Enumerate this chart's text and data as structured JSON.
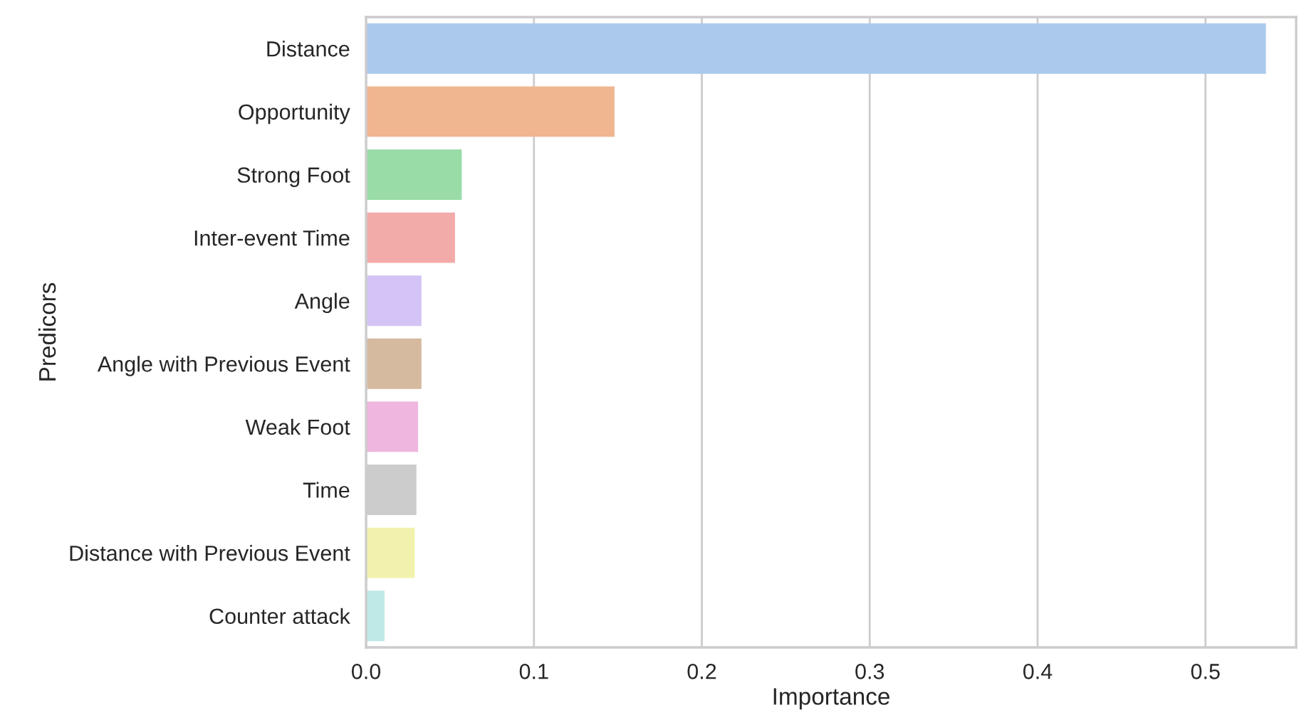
{
  "chart_data": {
    "type": "bar",
    "orientation": "horizontal",
    "xlabel": "Importance",
    "ylabel": "Predicors",
    "categories": [
      "Distance",
      "Opportunity",
      "Strong Foot",
      "Inter-event Time",
      "Angle",
      "Angle with Previous Event",
      "Weak Foot",
      "Time",
      "Distance with Previous Event",
      "Counter attack"
    ],
    "values": [
      0.536,
      0.148,
      0.057,
      0.053,
      0.033,
      0.033,
      0.031,
      0.03,
      0.029,
      0.011
    ],
    "colors": [
      "#abc9ec",
      "#f0b690",
      "#9adca8",
      "#f2aba9",
      "#d4c3f5",
      "#d5baa0",
      "#efb6df",
      "#cccccc",
      "#f2f2ae",
      "#bfe9e6"
    ],
    "xlim": [
      0,
      0.554
    ],
    "xticks": [
      {
        "value": 0,
        "label": "0.0"
      },
      0.1,
      0.2,
      0.3,
      0.4,
      0.5
    ],
    "grid": "x",
    "legend": false
  }
}
